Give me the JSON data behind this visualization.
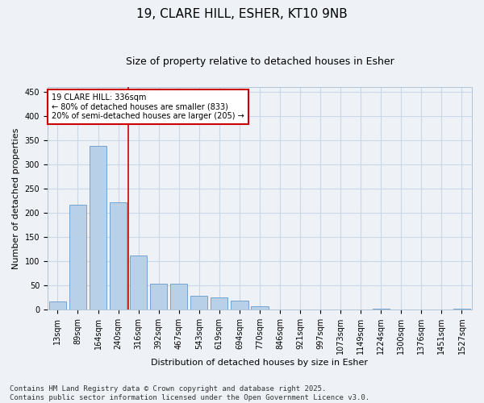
{
  "title": "19, CLARE HILL, ESHER, KT10 9NB",
  "subtitle": "Size of property relative to detached houses in Esher",
  "xlabel": "Distribution of detached houses by size in Esher",
  "ylabel": "Number of detached properties",
  "bar_labels": [
    "13sqm",
    "89sqm",
    "164sqm",
    "240sqm",
    "316sqm",
    "392sqm",
    "467sqm",
    "543sqm",
    "619sqm",
    "694sqm",
    "770sqm",
    "846sqm",
    "921sqm",
    "997sqm",
    "1073sqm",
    "1149sqm",
    "1224sqm",
    "1300sqm",
    "1376sqm",
    "1451sqm",
    "1527sqm"
  ],
  "bar_values": [
    16,
    216,
    338,
    222,
    112,
    54,
    54,
    28,
    25,
    19,
    7,
    0,
    0,
    0,
    0,
    0,
    1,
    0,
    0,
    0,
    2
  ],
  "bar_color": "#b8d0e8",
  "bar_edge_color": "#6699cc",
  "vline_index": 4,
  "annotation_text_line1": "19 CLARE HILL: 336sqm",
  "annotation_text_line2": "← 80% of detached houses are smaller (833)",
  "annotation_text_line3": "20% of semi-detached houses are larger (205) →",
  "annotation_box_color": "#ffffff",
  "annotation_box_edge": "#cc0000",
  "vline_color": "#cc0000",
  "ylim": [
    0,
    460
  ],
  "yticks": [
    0,
    50,
    100,
    150,
    200,
    250,
    300,
    350,
    400,
    450
  ],
  "grid_color": "#c8d8e8",
  "background_color": "#eef2f7",
  "footer_text": "Contains HM Land Registry data © Crown copyright and database right 2025.\nContains public sector information licensed under the Open Government Licence v3.0.",
  "title_fontsize": 11,
  "subtitle_fontsize": 9,
  "axis_label_fontsize": 8,
  "tick_fontsize": 7,
  "footer_fontsize": 6.5
}
